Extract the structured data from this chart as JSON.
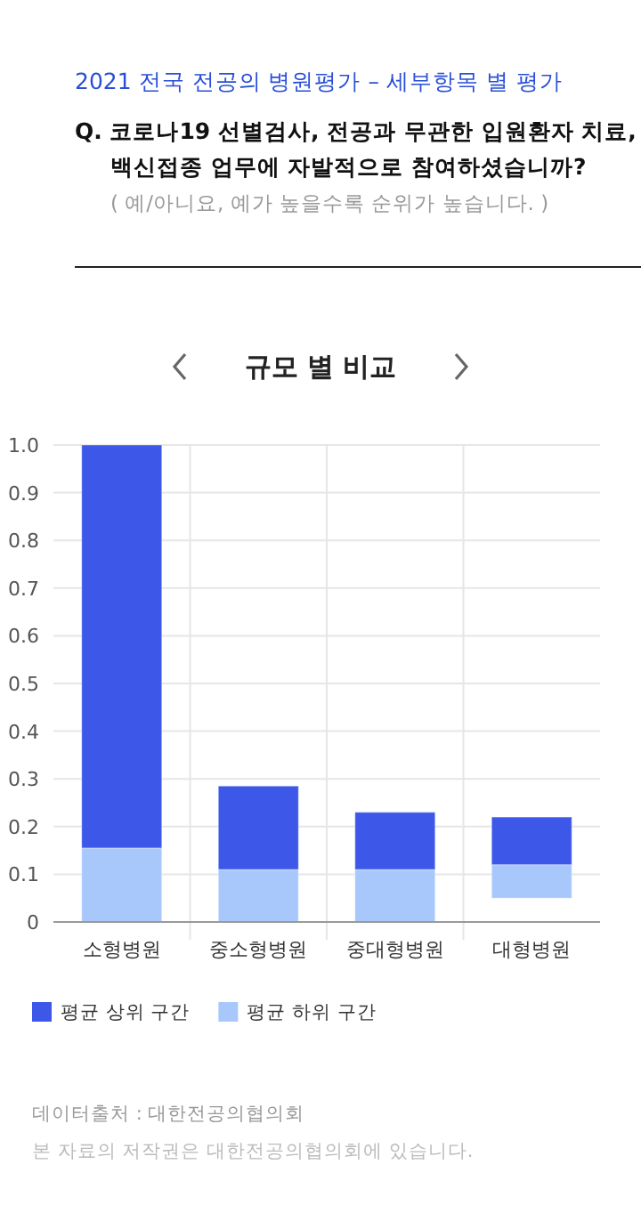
{
  "chart_data": {
    "type": "bar",
    "title": "규모 별 비교",
    "annotations": [
      "2021 전국 전공의 병원평가 – 세부항목 별 평가",
      "Q. 코로나19 선별검사, 전공과 무관한 입원환자 치료, 백신접종 업무에 자발적으로 참여하셨습니까?",
      "( 예/아니요, 예가 높을수록 순위가 높습니다. )",
      "데이터출처 : 대한전공의협의회",
      "본 자료의 저작권은 대한전공의협의회에 있습니다."
    ],
    "categories": [
      "소형병원",
      "중소형병원",
      "중대형병원",
      "대형병원"
    ],
    "series": [
      {
        "name": "평균 하위 구간",
        "color": "#a8c8fc",
        "base": [
          0,
          0,
          0,
          0.05
        ],
        "values": [
          0.155,
          0.11,
          0.11,
          0.07
        ]
      },
      {
        "name": "평균 상위 구간",
        "color": "#3d58e8",
        "base": [
          0.155,
          0.11,
          0.11,
          0.12
        ],
        "values": [
          0.845,
          0.175,
          0.12,
          0.1
        ]
      }
    ],
    "ylim": [
      0,
      1
    ],
    "yticks": [
      0,
      0.1,
      0.2,
      0.3,
      0.4,
      0.5,
      0.6,
      0.7,
      0.8,
      0.9,
      {
        "value": 1,
        "label": "1.0"
      }
    ],
    "grid": true,
    "legend": "bottom"
  }
}
